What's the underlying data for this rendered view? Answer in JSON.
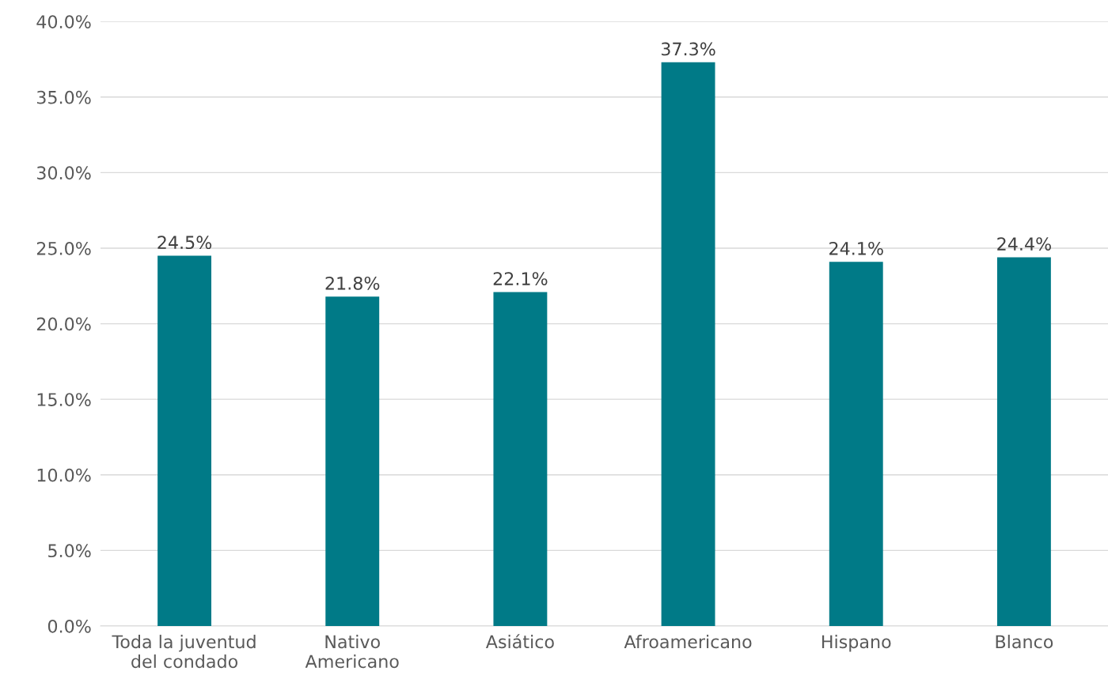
{
  "chart_data": {
    "type": "bar",
    "categories": [
      "Toda la juventud\ndel condado",
      "Nativo\nAmericano",
      "Asiático",
      "Afroamericano",
      "Hispano",
      "Blanco"
    ],
    "values": [
      24.5,
      21.8,
      22.1,
      37.3,
      24.1,
      24.4
    ],
    "value_labels": [
      "24.5%",
      "21.8%",
      "22.1%",
      "37.3%",
      "24.1%",
      "24.4%"
    ],
    "color": "#007a87",
    "ylim": [
      0,
      40
    ],
    "yticks": [
      {
        "value": 0,
        "label": "0.0%"
      },
      {
        "value": 5,
        "label": "5.0%"
      },
      {
        "value": 10,
        "label": "10.0%"
      },
      {
        "value": 15,
        "label": "15.0%"
      },
      {
        "value": 20,
        "label": "20.0%"
      },
      {
        "value": 25,
        "label": "25.0%"
      },
      {
        "value": 30,
        "label": "30.0%"
      },
      {
        "value": 35,
        "label": "35.0%"
      },
      {
        "value": 40,
        "label": "40.0%"
      }
    ],
    "grid": "y"
  }
}
